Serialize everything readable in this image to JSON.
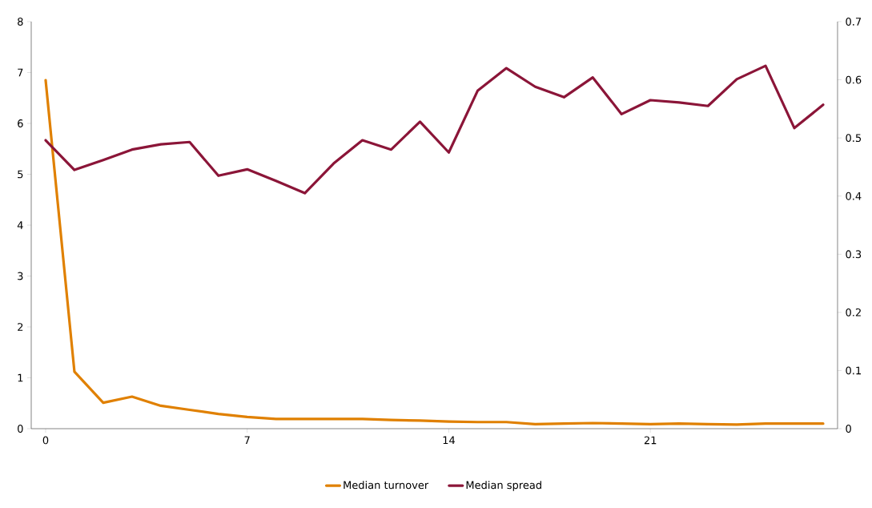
{
  "chart_data": {
    "type": "line",
    "x": [
      0,
      1,
      2,
      3,
      4,
      5,
      6,
      7,
      8,
      9,
      10,
      11,
      12,
      13,
      14,
      15,
      16,
      17,
      18,
      19,
      20,
      21,
      22,
      23,
      24,
      25,
      26,
      27
    ],
    "xlim": [
      -0.5,
      27.5
    ],
    "xticks": [
      0,
      7,
      14,
      21
    ],
    "ylim": [
      0,
      8
    ],
    "yticks": [
      0,
      1,
      2,
      3,
      4,
      5,
      6,
      7,
      8
    ],
    "y2lim": [
      0,
      0.7
    ],
    "y2ticks": [
      0,
      0.1,
      0.2,
      0.3,
      0.4,
      0.5,
      0.6,
      0.7
    ],
    "series": [
      {
        "name": "Median turnover",
        "color": "#e08000",
        "values": [
          6.85,
          1.12,
          0.51,
          0.63,
          0.45,
          0.37,
          0.29,
          0.23,
          0.19,
          0.19,
          0.19,
          0.19,
          0.17,
          0.16,
          0.14,
          0.13,
          0.13,
          0.09,
          0.1,
          0.11,
          0.1,
          0.09,
          0.1,
          0.09,
          0.08,
          0.1,
          0.1,
          0.1
        ]
      },
      {
        "name": "Median spread",
        "color": "#8b1538",
        "axis": "y2",
        "values": [
          0.496,
          0.445,
          0.462,
          0.48,
          0.489,
          0.493,
          0.435,
          0.446,
          0.426,
          0.405,
          0.456,
          0.496,
          0.48,
          0.528,
          0.475,
          0.581,
          0.62,
          0.588,
          0.57,
          0.604,
          0.541,
          0.565,
          0.561,
          0.555,
          0.601,
          0.624,
          0.517,
          0.557
        ]
      }
    ],
    "grid": false,
    "legend": "bottom",
    "marker": "none",
    "line_style": "solid"
  }
}
